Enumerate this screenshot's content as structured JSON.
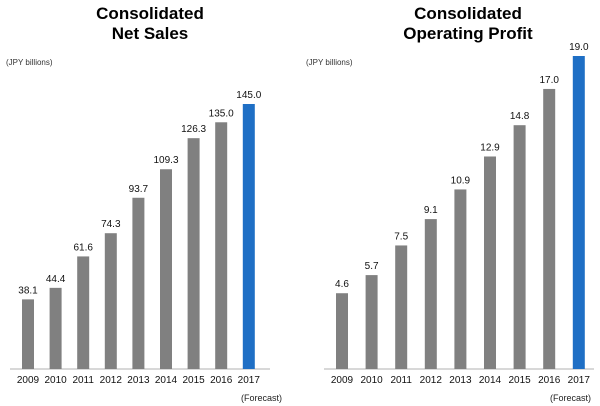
{
  "colors": {
    "bar": "#808080",
    "forecast": "#1f6fc5",
    "axis": "#b0b0b0"
  },
  "chart_data": [
    {
      "type": "bar",
      "title_line1": "Consolidated",
      "title_line2": "Net Sales",
      "ylabel": "(JPY billions)",
      "categories": [
        "2009",
        "2010",
        "2011",
        "2012",
        "2013",
        "2014",
        "2015",
        "2016",
        "2017"
      ],
      "values": [
        38.1,
        44.4,
        61.6,
        74.3,
        93.7,
        109.3,
        126.3,
        135.0,
        145.0
      ],
      "value_labels": [
        "38.1",
        "44.4",
        "61.6",
        "74.3",
        "93.7",
        "109.3",
        "126.3",
        "135.0",
        "145.0"
      ],
      "highlight_index": 8,
      "note": "(Forecast)",
      "ylim": [
        0,
        145
      ]
    },
    {
      "type": "bar",
      "title_line1": "Consolidated",
      "title_line2": "Operating Profit",
      "ylabel": "(JPY billions)",
      "categories": [
        "2009",
        "2010",
        "2011",
        "2012",
        "2013",
        "2014",
        "2015",
        "2016",
        "2017"
      ],
      "values": [
        4.6,
        5.7,
        7.5,
        9.1,
        10.9,
        12.9,
        14.8,
        17.0,
        19.0
      ],
      "value_labels": [
        "4.6",
        "5.7",
        "7.5",
        "9.1",
        "10.9",
        "12.9",
        "14.8",
        "17.0",
        "19.0"
      ],
      "highlight_index": 8,
      "note": "(Forecast)",
      "ylim": [
        0,
        19
      ]
    }
  ]
}
